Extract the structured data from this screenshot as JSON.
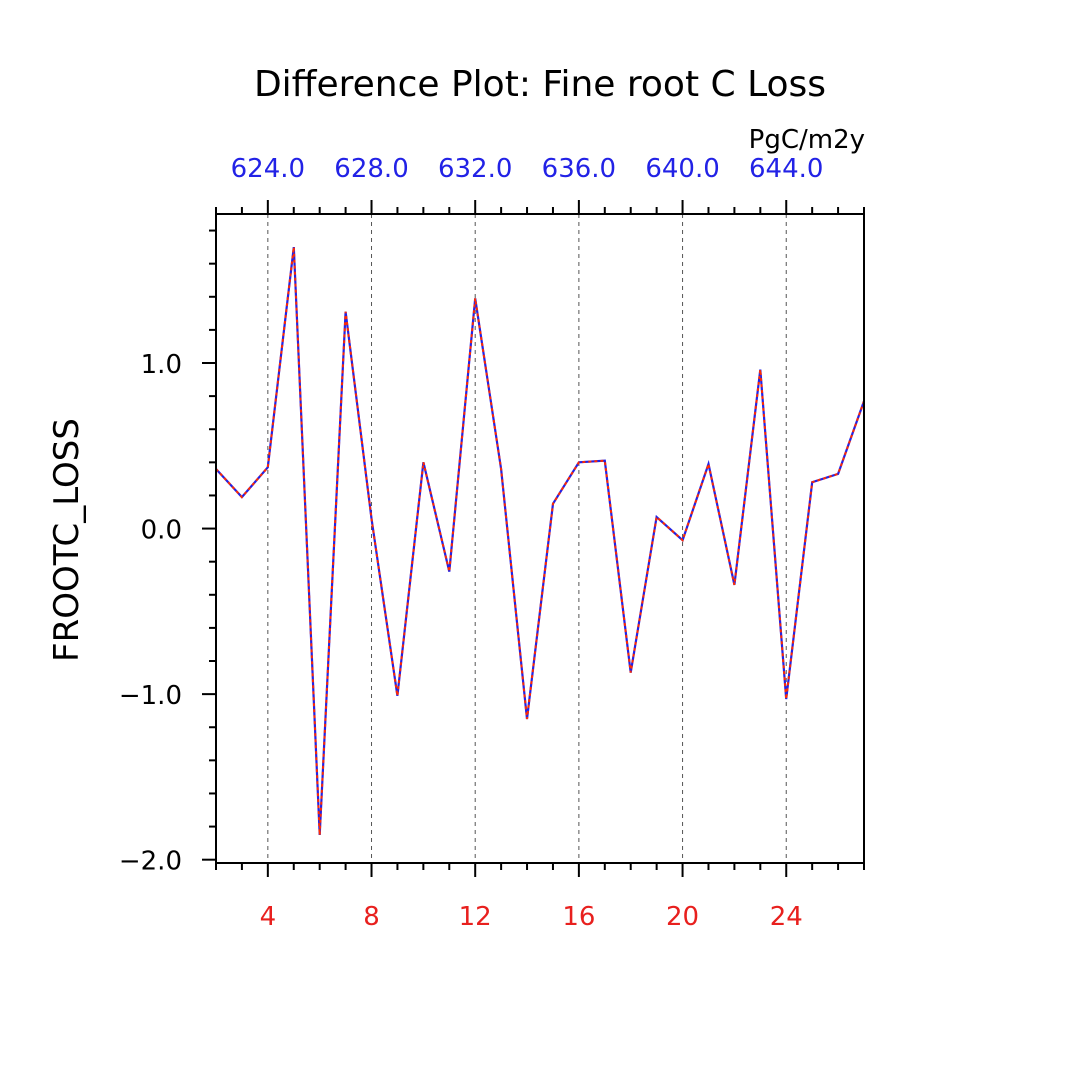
{
  "chart_data": {
    "type": "line",
    "title": "Difference Plot: Fine root C Loss",
    "units": "PgC/m2y",
    "ylabel": "FROOTC_LOSS",
    "xlabel": "",
    "xlim": [
      2,
      27
    ],
    "ylim": [
      -2.02,
      1.9
    ],
    "x_ticks": [
      4,
      8,
      12,
      16,
      20,
      24
    ],
    "x_tick_labels": [
      "4",
      "8",
      "12",
      "16",
      "20",
      "24"
    ],
    "x_tick_color": "#e8201e",
    "y_ticks": [
      1.0,
      0.0,
      -1.0,
      -2.0
    ],
    "y_tick_labels": [
      "1.0",
      "0.0",
      "−1.0",
      "−2.0"
    ],
    "top_axis": {
      "ticks": [
        4,
        8,
        12,
        16,
        20,
        24
      ],
      "labels": [
        "624.0",
        "628.0",
        "632.0",
        "636.0",
        "640.0",
        "644.0"
      ],
      "color": "#2222e6"
    },
    "grid": "vertical-dashed",
    "series": [
      {
        "name": "blue",
        "color": "#2222e6",
        "style": "solid",
        "x": [
          2,
          3,
          4,
          5,
          6,
          7,
          8,
          9,
          10,
          11,
          12,
          13,
          14,
          15,
          16,
          17,
          18,
          19,
          20,
          21,
          22,
          23,
          24,
          25,
          26,
          27
        ],
        "values": [
          0.36,
          0.19,
          0.37,
          1.7,
          -1.85,
          1.31,
          0.06,
          -1.01,
          0.4,
          -0.26,
          1.39,
          0.36,
          -1.15,
          0.15,
          0.4,
          0.41,
          -0.87,
          0.07,
          -0.07,
          0.39,
          -0.34,
          0.96,
          -1.03,
          0.28,
          0.33,
          0.77
        ]
      },
      {
        "name": "red",
        "color": "#ff2a00",
        "style": "dashed",
        "x": [
          2,
          3,
          4,
          5,
          6,
          7,
          8,
          9,
          10,
          11,
          12,
          13,
          14,
          15,
          16,
          17,
          18,
          19,
          20,
          21,
          22,
          23,
          24,
          25,
          26,
          27
        ],
        "values": [
          0.36,
          0.19,
          0.37,
          1.7,
          -1.85,
          1.31,
          0.06,
          -1.01,
          0.4,
          -0.26,
          1.39,
          0.36,
          -1.15,
          0.15,
          0.4,
          0.41,
          -0.87,
          0.07,
          -0.07,
          0.39,
          -0.34,
          0.96,
          -1.03,
          0.28,
          0.33,
          0.77
        ]
      }
    ]
  }
}
